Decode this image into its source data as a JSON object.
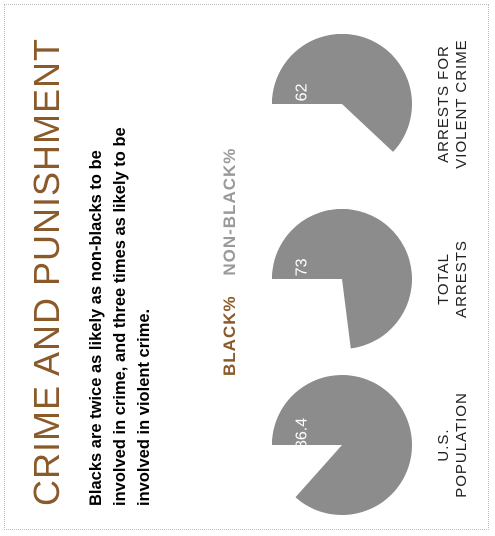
{
  "header": {
    "title": "CRIME AND PUNISHMENT",
    "subtitle": "Blacks are twice as likely as non-blacks to be involved in crime, and three times as likely to be involved in violent crime."
  },
  "colors": {
    "black_pct": "#8a5a2a",
    "non_black_pct": "#8c8c8c"
  },
  "chart_data": {
    "type": "pie",
    "legend": [
      "BLACK%",
      "NON-BLACK%"
    ],
    "series": [
      {
        "label_lines": [
          "U.S.",
          "POPULATION"
        ],
        "values": [
          13.4,
          86.4
        ],
        "value_labels": [
          "13.4",
          "86.4"
        ]
      },
      {
        "label_lines": [
          "TOTAL",
          "ARRESTS"
        ],
        "values": [
          27,
          73
        ],
        "value_labels": [
          "27",
          "73"
        ]
      },
      {
        "label_lines": [
          "ARRESTS FOR",
          "VIOLENT CRIME"
        ],
        "values": [
          38,
          62
        ],
        "value_labels": [
          "38",
          "62"
        ]
      }
    ]
  }
}
